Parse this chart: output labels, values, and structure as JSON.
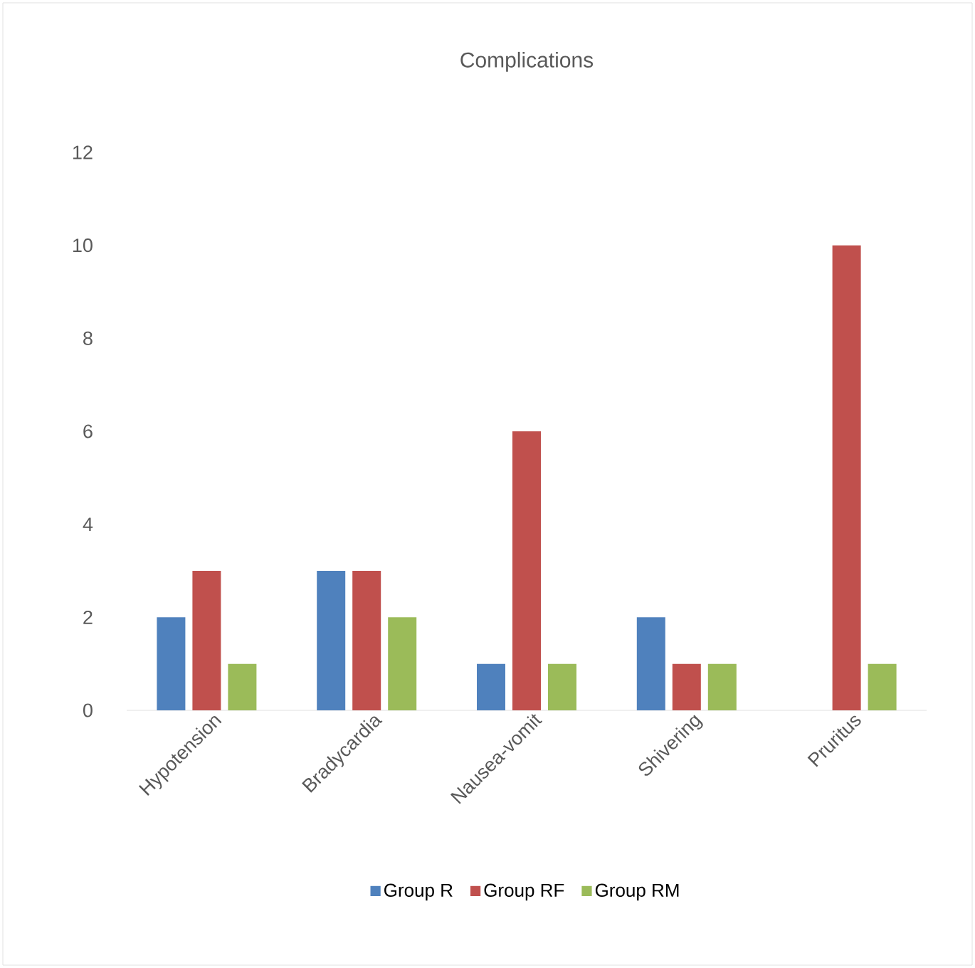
{
  "chart_data": {
    "type": "bar",
    "title": "Complications",
    "categories": [
      "Hypotension",
      "Bradycardia",
      "Nausea-vomit",
      "Shivering",
      "Pruritus"
    ],
    "series": [
      {
        "name": "Group R",
        "color": "#4f81bd",
        "values": [
          2,
          3,
          1,
          2,
          0
        ]
      },
      {
        "name": "Group RF",
        "color": "#c0504d",
        "values": [
          3,
          3,
          6,
          1,
          10
        ]
      },
      {
        "name": "Group RM",
        "color": "#9bbb59",
        "values": [
          1,
          2,
          1,
          1,
          1
        ]
      }
    ],
    "ylim": [
      0,
      12
    ],
    "yticks": [
      0,
      2,
      4,
      6,
      8,
      10,
      12
    ],
    "legend": "bottom"
  }
}
